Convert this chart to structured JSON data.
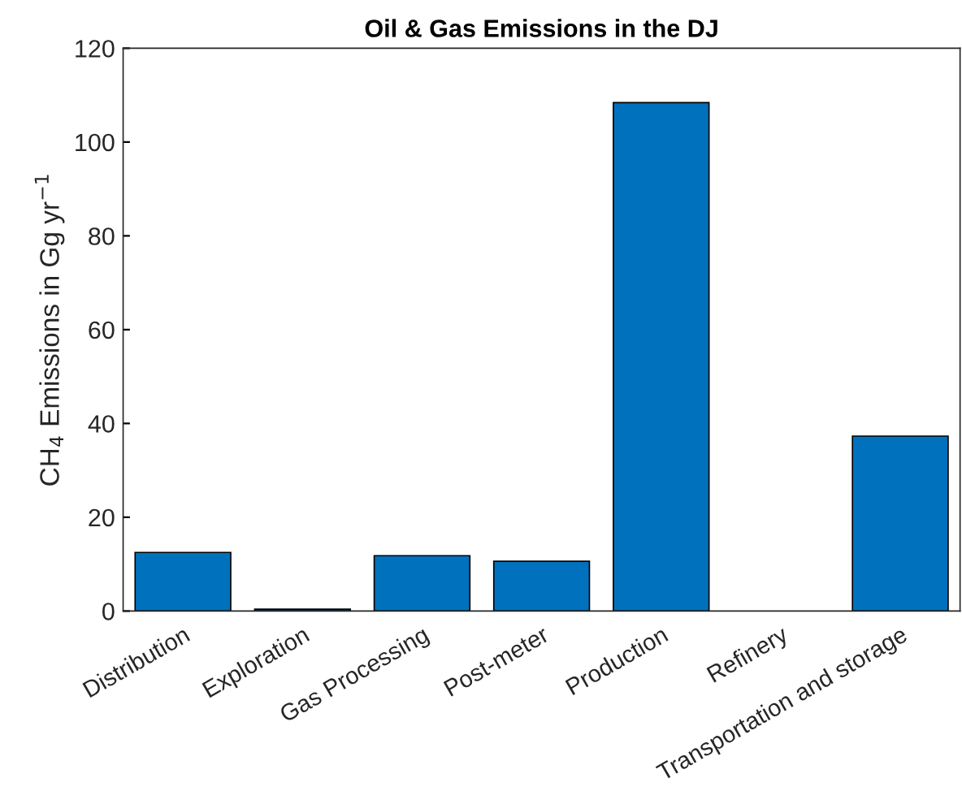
{
  "chart_data": {
    "type": "bar",
    "title": "Oil & Gas Emissions in the DJ",
    "ylabel": "CH$_{4}$ Emissions in Gg yr$^{−1}$",
    "categories": [
      "Distribution",
      "Exploration",
      "Gas Processing",
      "Post-meter",
      "Production",
      "Refinery",
      "Transportation and storage"
    ],
    "values": [
      12.5,
      0.4,
      11.8,
      10.6,
      108.4,
      0,
      37.3
    ],
    "color": "#0072bd",
    "ylim": [
      0,
      120
    ],
    "yticks": [
      0,
      20,
      40,
      60,
      80,
      100,
      120
    ],
    "grid": false
  }
}
